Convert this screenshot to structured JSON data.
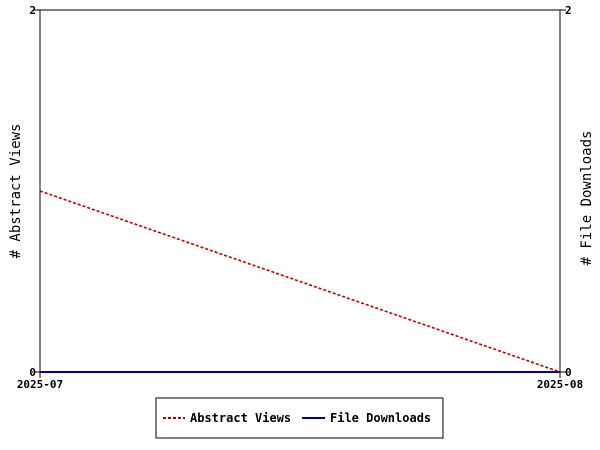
{
  "chart_data": {
    "type": "line",
    "title": "",
    "x": [
      "2025-07",
      "2025-08"
    ],
    "left_axis": {
      "label": "# Abstract Views",
      "ylim": [
        0,
        2
      ],
      "ticks": [
        "0",
        "2"
      ]
    },
    "right_axis": {
      "label": "# File Downloads",
      "ylim": [
        0,
        2
      ],
      "ticks": [
        "0",
        "2"
      ]
    },
    "series": [
      {
        "name": "Abstract Views",
        "axis": "left",
        "values": [
          1,
          0
        ],
        "color": "#bb0000",
        "style": "dashed"
      },
      {
        "name": "File Downloads",
        "axis": "right",
        "values": [
          0,
          0
        ],
        "color": "#000099",
        "style": "solid"
      }
    ],
    "grid": false,
    "legend_position": "bottom-center"
  }
}
